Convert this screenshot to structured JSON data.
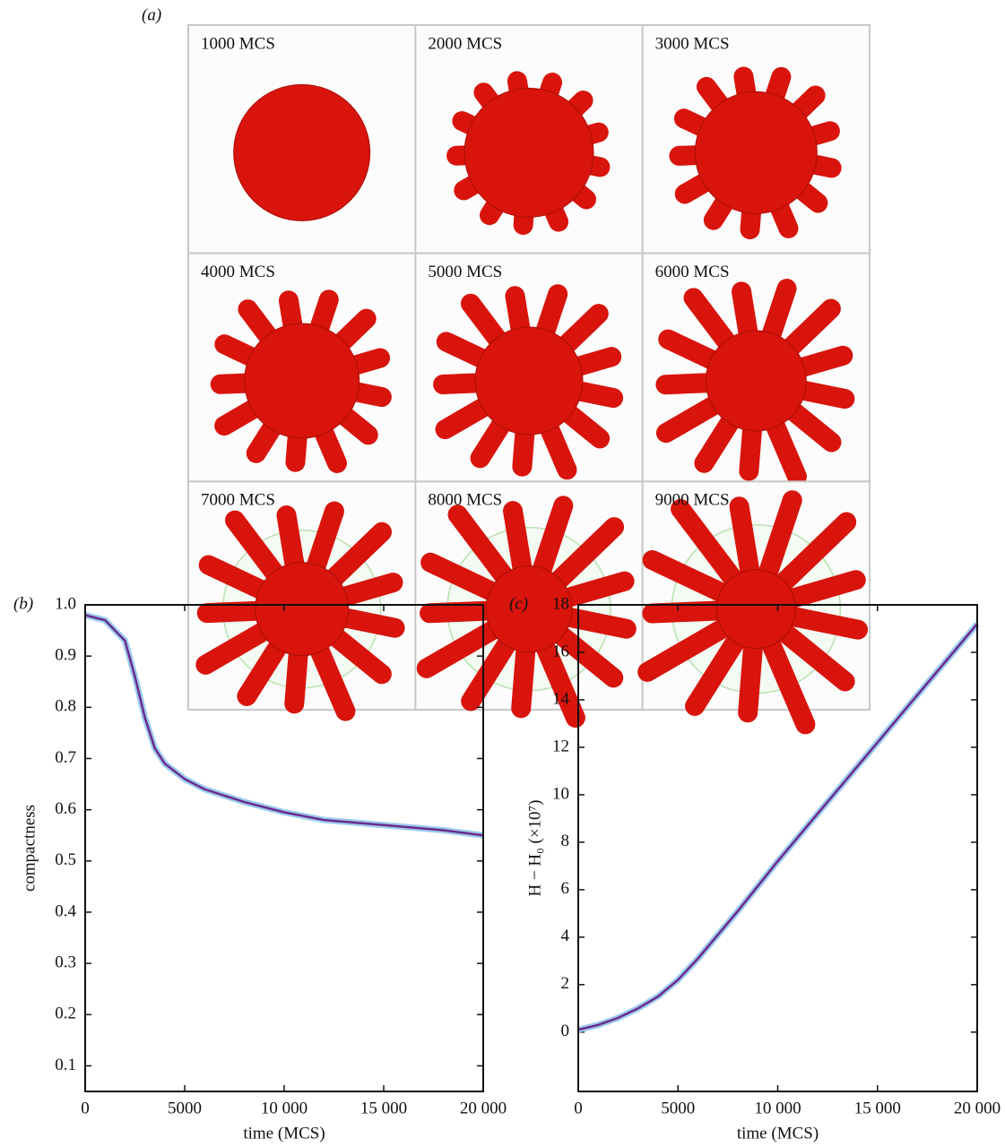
{
  "panel_a": {
    "label": "(a)",
    "frames": [
      "1000 MCS",
      "2000 MCS",
      "3000 MCS",
      "4000 MCS",
      "5000 MCS",
      "6000 MCS",
      "7000 MCS",
      "8000 MCS",
      "9000 MCS"
    ]
  },
  "chart_data": [
    {
      "type": "line",
      "panel_label": "(b)",
      "y_label": "compactness",
      "x_label": "time (MCS)",
      "x": [
        0,
        1000,
        2000,
        2500,
        3000,
        3500,
        4000,
        5000,
        6000,
        8000,
        10000,
        12000,
        15000,
        18000,
        20000
      ],
      "values": [
        0.98,
        0.97,
        0.93,
        0.86,
        0.78,
        0.72,
        0.69,
        0.66,
        0.64,
        0.615,
        0.595,
        0.58,
        0.57,
        0.56,
        0.55
      ],
      "color": "#6b2a8c",
      "halo_color": "#9ccbec",
      "xlim": [
        0,
        20000
      ],
      "ylim": [
        0.05,
        1.0
      ],
      "xticks": [
        0,
        5000,
        {
          "value": 10000,
          "label": "10 000"
        },
        {
          "value": 15000,
          "label": "15 000"
        },
        {
          "value": 20000,
          "label": "20 000"
        }
      ],
      "yticks": [
        0.1,
        0.2,
        0.3,
        0.4,
        0.5,
        0.6,
        0.7,
        0.8,
        0.9,
        {
          "value": 1.0,
          "label": "1.0"
        }
      ]
    },
    {
      "type": "line",
      "panel_label": "(c)",
      "y_label": "H − H₀ (×10⁷)",
      "x_label": "time (MCS)",
      "x": [
        0,
        1000,
        2000,
        3000,
        4000,
        5000,
        6000,
        8000,
        10000,
        12000,
        15000,
        18000,
        20000
      ],
      "values": [
        0.1,
        0.3,
        0.6,
        1.0,
        1.5,
        2.2,
        3.1,
        5.1,
        7.2,
        9.2,
        12.2,
        15.2,
        17.2
      ],
      "color": "#6b2a8c",
      "halo_color": "#9ccbec",
      "xlim": [
        0,
        20000
      ],
      "ylim": [
        -2.5,
        18
      ],
      "xticks": [
        0,
        5000,
        {
          "value": 10000,
          "label": "10 000"
        },
        {
          "value": 15000,
          "label": "15 000"
        },
        {
          "value": 20000,
          "label": "20 000"
        }
      ],
      "yticks": [
        0,
        2,
        4,
        6,
        8,
        10,
        12,
        14,
        16,
        18
      ]
    }
  ]
}
